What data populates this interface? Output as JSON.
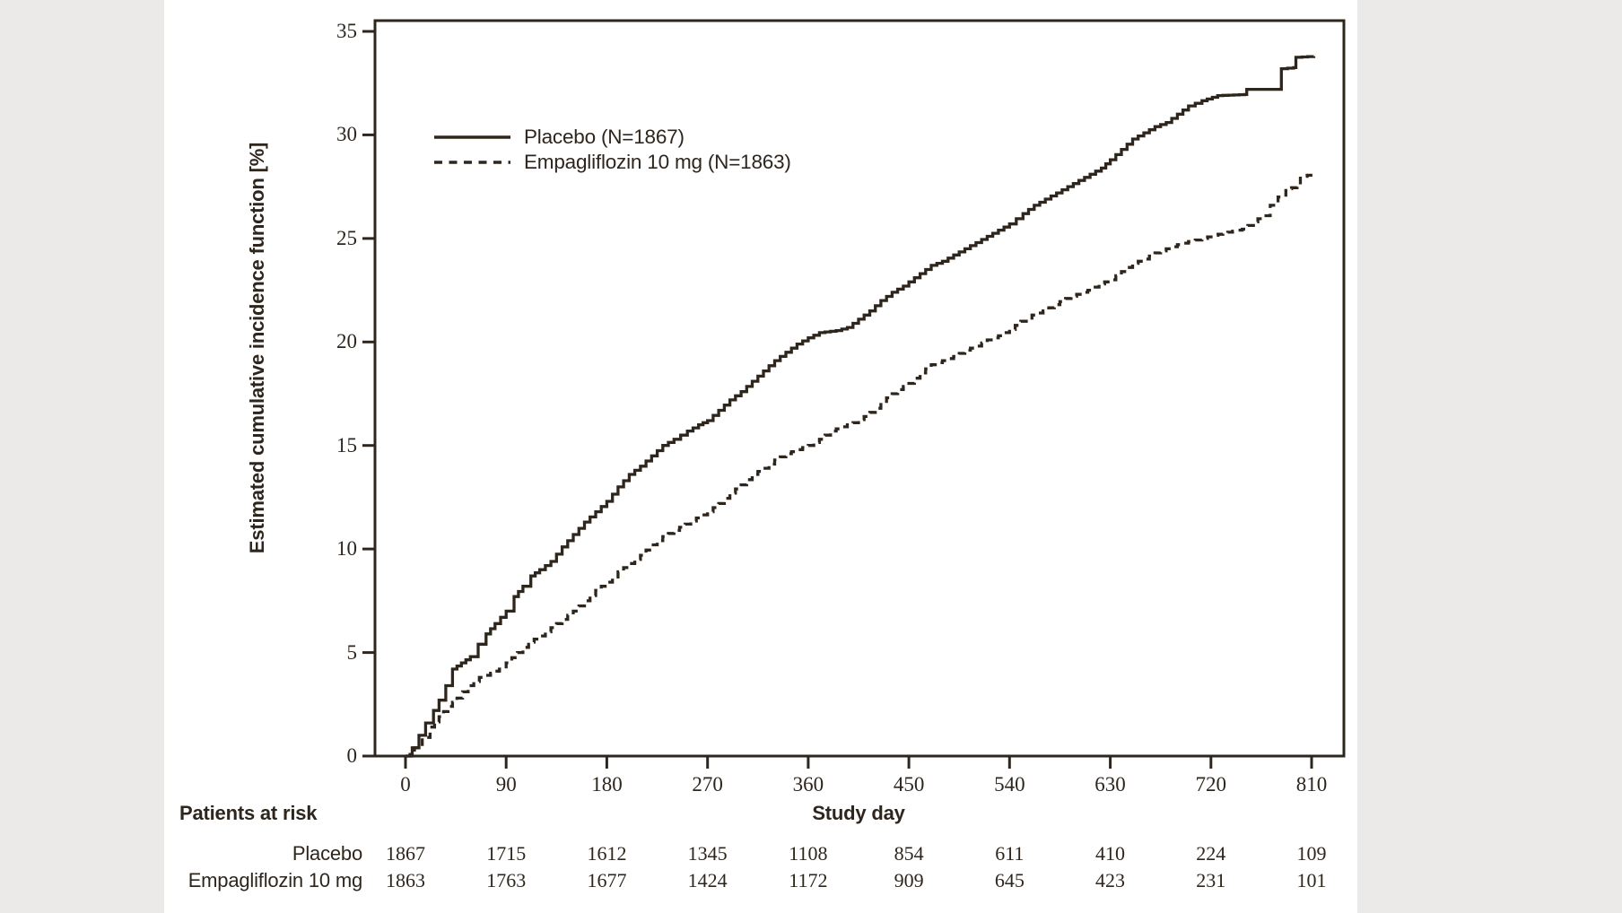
{
  "figure": {
    "y_axis": {
      "title": "Estimated cumulative incidence function [%]",
      "ticks": [
        0,
        5,
        10,
        15,
        20,
        25,
        30,
        35
      ]
    },
    "x_axis": {
      "title": "Study day",
      "ticks": [
        0,
        90,
        180,
        270,
        360,
        450,
        540,
        630,
        720,
        810
      ]
    },
    "legend": [
      {
        "label": "Placebo (N=1867)",
        "style": "solid"
      },
      {
        "label": "Empagliflozin 10 mg (N=1863)",
        "style": "dashed"
      }
    ],
    "at_risk": {
      "header": "Patients at risk",
      "rows": [
        {
          "label": "Placebo",
          "counts": [
            1867,
            1715,
            1612,
            1345,
            1108,
            854,
            611,
            410,
            224,
            109
          ]
        },
        {
          "label": "Empagliflozin 10 mg",
          "counts": [
            1863,
            1763,
            1677,
            1424,
            1172,
            909,
            645,
            423,
            231,
            101
          ]
        }
      ]
    }
  },
  "colors": {
    "ink": "#2e261d",
    "page": "#ffffff",
    "outside_margin": "#ebeae8"
  },
  "chart_data": {
    "type": "line",
    "subtype": "step-cumulative-incidence",
    "title": "",
    "xlabel": "Study day",
    "ylabel": "Estimated cumulative incidence function [%]",
    "xlim": [
      0,
      837
    ],
    "ylim": [
      0,
      35
    ],
    "grid": false,
    "legend_position": "top-left-inside",
    "x_ticks": [
      0,
      90,
      180,
      270,
      360,
      450,
      540,
      630,
      720,
      810
    ],
    "y_ticks": [
      0,
      5,
      10,
      15,
      20,
      25,
      30,
      35
    ],
    "series": [
      {
        "name": "Placebo (N=1867)",
        "style": "solid",
        "points": [
          [
            0,
            0
          ],
          [
            6,
            0.4
          ],
          [
            12,
            1.0
          ],
          [
            18,
            1.6
          ],
          [
            25,
            2.2
          ],
          [
            30,
            2.7
          ],
          [
            36,
            3.4
          ],
          [
            42,
            4.2
          ],
          [
            50,
            4.5
          ],
          [
            58,
            4.8
          ],
          [
            65,
            5.4
          ],
          [
            72,
            5.9
          ],
          [
            80,
            6.4
          ],
          [
            90,
            7.0
          ],
          [
            97,
            7.7
          ],
          [
            105,
            8.2
          ],
          [
            112,
            8.7
          ],
          [
            120,
            9.0
          ],
          [
            130,
            9.4
          ],
          [
            140,
            10.1
          ],
          [
            150,
            10.7
          ],
          [
            160,
            11.3
          ],
          [
            170,
            11.8
          ],
          [
            180,
            12.3
          ],
          [
            190,
            13.0
          ],
          [
            200,
            13.6
          ],
          [
            210,
            14.0
          ],
          [
            220,
            14.5
          ],
          [
            230,
            15.0
          ],
          [
            240,
            15.3
          ],
          [
            252,
            15.7
          ],
          [
            262,
            16.0
          ],
          [
            270,
            16.2
          ],
          [
            280,
            16.7
          ],
          [
            290,
            17.2
          ],
          [
            300,
            17.6
          ],
          [
            310,
            18.1
          ],
          [
            320,
            18.6
          ],
          [
            330,
            19.1
          ],
          [
            340,
            19.5
          ],
          [
            350,
            19.9
          ],
          [
            360,
            20.2
          ],
          [
            370,
            20.45
          ],
          [
            385,
            20.55
          ],
          [
            395,
            20.7
          ],
          [
            405,
            21.1
          ],
          [
            415,
            21.5
          ],
          [
            425,
            22.0
          ],
          [
            435,
            22.4
          ],
          [
            445,
            22.7
          ],
          [
            450,
            22.9
          ],
          [
            460,
            23.3
          ],
          [
            470,
            23.7
          ],
          [
            480,
            23.9
          ],
          [
            490,
            24.2
          ],
          [
            500,
            24.5
          ],
          [
            510,
            24.8
          ],
          [
            520,
            25.1
          ],
          [
            530,
            25.4
          ],
          [
            540,
            25.7
          ],
          [
            552,
            26.2
          ],
          [
            562,
            26.6
          ],
          [
            572,
            26.9
          ],
          [
            582,
            27.2
          ],
          [
            592,
            27.5
          ],
          [
            602,
            27.8
          ],
          [
            612,
            28.1
          ],
          [
            622,
            28.4
          ],
          [
            630,
            28.8
          ],
          [
            640,
            29.3
          ],
          [
            650,
            29.8
          ],
          [
            660,
            30.1
          ],
          [
            670,
            30.4
          ],
          [
            680,
            30.6
          ],
          [
            690,
            31.0
          ],
          [
            700,
            31.4
          ],
          [
            712,
            31.65
          ],
          [
            726,
            31.9
          ],
          [
            750,
            31.95
          ],
          [
            752,
            32.2
          ],
          [
            781,
            32.2
          ],
          [
            783,
            33.2
          ],
          [
            794,
            33.25
          ],
          [
            796,
            33.75
          ],
          [
            812,
            33.8
          ]
        ]
      },
      {
        "name": "Empagliflozin 10 mg (N=1863)",
        "style": "dashed",
        "points": [
          [
            0,
            0
          ],
          [
            8,
            0.4
          ],
          [
            15,
            0.9
          ],
          [
            22,
            1.4
          ],
          [
            30,
            1.9
          ],
          [
            38,
            2.4
          ],
          [
            46,
            2.8
          ],
          [
            56,
            3.4
          ],
          [
            66,
            3.8
          ],
          [
            76,
            4.0
          ],
          [
            84,
            4.2
          ],
          [
            90,
            4.5
          ],
          [
            100,
            5.0
          ],
          [
            110,
            5.5
          ],
          [
            120,
            5.8
          ],
          [
            130,
            6.2
          ],
          [
            140,
            6.6
          ],
          [
            150,
            7.0
          ],
          [
            160,
            7.5
          ],
          [
            170,
            8.0
          ],
          [
            180,
            8.4
          ],
          [
            190,
            8.9
          ],
          [
            200,
            9.3
          ],
          [
            210,
            9.7
          ],
          [
            220,
            10.2
          ],
          [
            230,
            10.6
          ],
          [
            240,
            10.9
          ],
          [
            250,
            11.2
          ],
          [
            260,
            11.5
          ],
          [
            270,
            11.8
          ],
          [
            280,
            12.2
          ],
          [
            290,
            12.7
          ],
          [
            300,
            13.1
          ],
          [
            310,
            13.6
          ],
          [
            320,
            13.9
          ],
          [
            330,
            14.3
          ],
          [
            340,
            14.6
          ],
          [
            350,
            14.8
          ],
          [
            360,
            15.0
          ],
          [
            370,
            15.3
          ],
          [
            380,
            15.7
          ],
          [
            390,
            15.9
          ],
          [
            400,
            16.1
          ],
          [
            410,
            16.4
          ],
          [
            420,
            16.8
          ],
          [
            430,
            17.3
          ],
          [
            440,
            17.7
          ],
          [
            450,
            18.0
          ],
          [
            460,
            18.5
          ],
          [
            470,
            18.9
          ],
          [
            480,
            19.1
          ],
          [
            490,
            19.3
          ],
          [
            500,
            19.6
          ],
          [
            510,
            19.8
          ],
          [
            520,
            20.1
          ],
          [
            530,
            20.3
          ],
          [
            540,
            20.6
          ],
          [
            550,
            21.0
          ],
          [
            560,
            21.3
          ],
          [
            570,
            21.5
          ],
          [
            580,
            21.8
          ],
          [
            590,
            22.1
          ],
          [
            600,
            22.3
          ],
          [
            610,
            22.5
          ],
          [
            620,
            22.8
          ],
          [
            630,
            23.0
          ],
          [
            640,
            23.4
          ],
          [
            650,
            23.8
          ],
          [
            660,
            24.0
          ],
          [
            670,
            24.3
          ],
          [
            680,
            24.5
          ],
          [
            690,
            24.7
          ],
          [
            700,
            24.85
          ],
          [
            712,
            25.0
          ],
          [
            722,
            25.15
          ],
          [
            735,
            25.3
          ],
          [
            748,
            25.45
          ],
          [
            758,
            25.8
          ],
          [
            766,
            26.1
          ],
          [
            773,
            26.6
          ],
          [
            780,
            27.0
          ],
          [
            787,
            27.4
          ],
          [
            797,
            27.5
          ],
          [
            800,
            28.0
          ],
          [
            812,
            28.1
          ]
        ]
      }
    ],
    "at_risk_table": {
      "row_labels": [
        "Placebo",
        "Empagliflozin 10 mg"
      ],
      "days": [
        0,
        90,
        180,
        270,
        360,
        450,
        540,
        630,
        720,
        810
      ],
      "counts": [
        [
          1867,
          1715,
          1612,
          1345,
          1108,
          854,
          611,
          410,
          224,
          109
        ],
        [
          1863,
          1763,
          1677,
          1424,
          1172,
          909,
          645,
          423,
          231,
          101
        ]
      ]
    }
  }
}
